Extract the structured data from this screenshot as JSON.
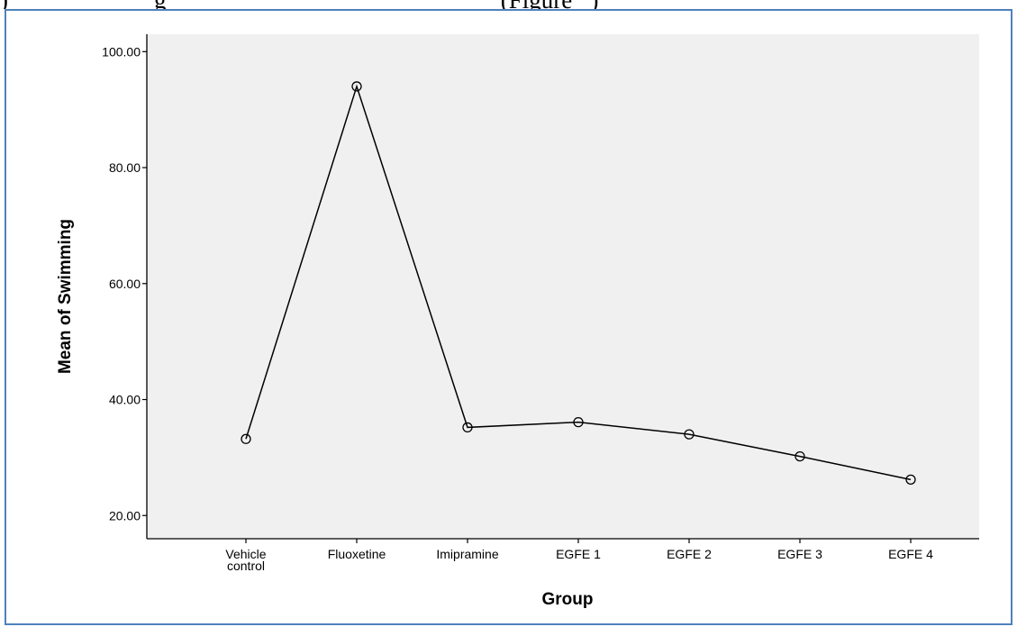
{
  "caption_fragment": ")                        g                                                       (Figure   )",
  "chart_data": {
    "type": "line",
    "title": "",
    "xlabel": "Group",
    "ylabel": "Mean of Swimming",
    "categories": [
      "Vehicle control",
      "Fluoxetine",
      "Imipramine",
      "EGFE 1",
      "EGFE 2",
      "EGFE 3",
      "EGFE 4"
    ],
    "category_lines": [
      [
        "Vehicle",
        "control"
      ],
      [
        "Fluoxetine"
      ],
      [
        "Imipramine"
      ],
      [
        "EGFE 1"
      ],
      [
        "EGFE 2"
      ],
      [
        "EGFE 3"
      ],
      [
        "EGFE 4"
      ]
    ],
    "series": [
      {
        "values": [
          33.2,
          94.0,
          35.2,
          36.1,
          34.0,
          30.2,
          26.2
        ]
      }
    ],
    "ylim": [
      16.0,
      103.0
    ],
    "yticks": [
      20.0,
      40.0,
      60.0,
      80.0,
      100.0
    ],
    "ytick_labels": [
      "20.00",
      "40.00",
      "60.00",
      "80.00",
      "100.00"
    ],
    "grid": false,
    "legend": "none",
    "markers": "open-circle",
    "colors": {
      "plot_background": "#f0f0f0",
      "line": "#000000",
      "frame_border": "#4f81bd"
    }
  }
}
